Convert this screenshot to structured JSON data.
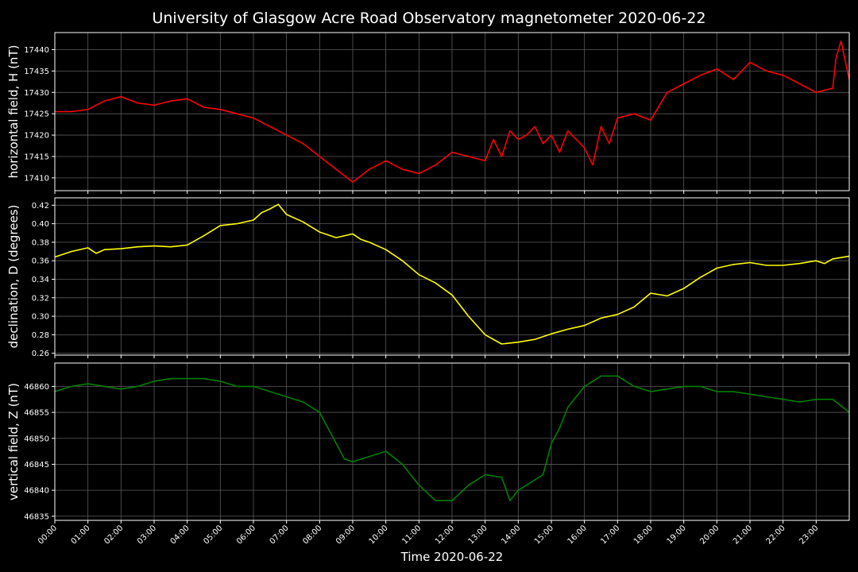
{
  "figure": {
    "title": "University of Glasgow Acre Road Observatory magnetometer 2020-06-22",
    "xlabel": "Time 2020-06-22",
    "background": "#000000"
  },
  "chart_data": [
    {
      "type": "line",
      "ylabel": "horizontal field, H (nT)",
      "color": "#ff0000",
      "ylim": [
        17407,
        17444
      ],
      "yticks": [
        17410,
        17415,
        17420,
        17425,
        17430,
        17435,
        17440
      ],
      "xlim": [
        0,
        24
      ],
      "xticks": [
        "00:00",
        "01:00",
        "02:00",
        "03:00",
        "04:00",
        "05:00",
        "06:00",
        "07:00",
        "08:00",
        "09:00",
        "10:00",
        "11:00",
        "12:00",
        "13:00",
        "14:00",
        "15:00",
        "16:00",
        "17:00",
        "18:00",
        "19:00",
        "20:00",
        "21:00",
        "22:00",
        "23:00"
      ],
      "grid": true,
      "series": [
        {
          "x": [
            0,
            0.5,
            1,
            1.5,
            2,
            2.5,
            3,
            3.5,
            4,
            4.5,
            5,
            5.5,
            6,
            6.5,
            7,
            7.5,
            8,
            8.5,
            9,
            9.5,
            10,
            10.5,
            11,
            11.5,
            12,
            12.5,
            13,
            13.25,
            13.5,
            13.75,
            14,
            14.25,
            14.5,
            14.75,
            15,
            15.25,
            15.5,
            15.75,
            16,
            16.25,
            16.5,
            16.75,
            17,
            17.5,
            18,
            18.5,
            19,
            19.5,
            20,
            20.5,
            21,
            21.5,
            22,
            22.5,
            23,
            23.5,
            23.6,
            23.75,
            24
          ],
          "y": [
            17425.5,
            17425.5,
            17426,
            17428,
            17429,
            17427.5,
            17427,
            17428,
            17428.5,
            17426.5,
            17426,
            17425,
            17424,
            17422,
            17420,
            17418,
            17415,
            17412,
            17409,
            17412,
            17414,
            17412,
            17411,
            17413,
            17416,
            17415,
            17414,
            17419,
            17415,
            17421,
            17419,
            17420,
            17422,
            17418,
            17420,
            17416,
            17421,
            17419,
            17417,
            17413,
            17422,
            17418,
            17424,
            17425,
            17423.5,
            17430,
            17432,
            17434,
            17435.5,
            17433,
            17437,
            17435,
            17434,
            17432,
            17430,
            17431,
            17438,
            17442,
            17433
          ]
        }
      ]
    },
    {
      "type": "line",
      "ylabel": "declination, D (degrees)",
      "color": "#ffff00",
      "ylim": [
        0.258,
        0.428
      ],
      "yticks": [
        0.26,
        0.28,
        0.3,
        0.32,
        0.34,
        0.36,
        0.38,
        0.4,
        0.42
      ],
      "xlim": [
        0,
        24
      ],
      "grid": true,
      "series": [
        {
          "x": [
            0,
            0.5,
            1,
            1.25,
            1.5,
            2,
            2.5,
            3,
            3.5,
            4,
            4.5,
            5,
            5.5,
            6,
            6.25,
            6.5,
            6.75,
            7,
            7.5,
            8,
            8.5,
            9,
            9.25,
            9.5,
            10,
            10.5,
            11,
            11.5,
            12,
            12.5,
            13,
            13.5,
            14,
            14.5,
            15,
            15.5,
            16,
            16.5,
            17,
            17.5,
            18,
            18.5,
            19,
            19.5,
            20,
            20.5,
            21,
            21.5,
            22,
            22.5,
            23,
            23.25,
            23.5,
            24
          ],
          "y": [
            0.364,
            0.37,
            0.374,
            0.368,
            0.372,
            0.373,
            0.375,
            0.376,
            0.375,
            0.377,
            0.387,
            0.398,
            0.4,
            0.404,
            0.412,
            0.416,
            0.421,
            0.41,
            0.402,
            0.391,
            0.385,
            0.389,
            0.383,
            0.38,
            0.372,
            0.36,
            0.345,
            0.336,
            0.323,
            0.3,
            0.28,
            0.27,
            0.272,
            0.275,
            0.281,
            0.286,
            0.29,
            0.298,
            0.302,
            0.31,
            0.325,
            0.322,
            0.33,
            0.342,
            0.352,
            0.356,
            0.358,
            0.355,
            0.355,
            0.357,
            0.36,
            0.357,
            0.362,
            0.365
          ]
        }
      ]
    },
    {
      "type": "line",
      "ylabel": "vertical field, Z (nT)",
      "color": "#008000",
      "ylim": [
        46834.2,
        46864.5
      ],
      "yticks": [
        46835,
        46840,
        46845,
        46850,
        46855,
        46860
      ],
      "xlim": [
        0,
        24
      ],
      "grid": true,
      "series": [
        {
          "x": [
            0,
            0.5,
            1,
            1.5,
            2,
            2.5,
            3,
            3.5,
            4,
            4.5,
            5,
            5.5,
            6,
            6.5,
            7,
            7.5,
            8,
            8.25,
            8.5,
            8.75,
            9,
            9.5,
            10,
            10.5,
            11,
            11.5,
            12,
            12.5,
            13,
            13.5,
            13.75,
            14,
            14.25,
            14.5,
            14.75,
            15,
            15.25,
            15.5,
            16,
            16.5,
            17,
            17.5,
            18,
            18.5,
            19,
            19.5,
            20,
            20.5,
            21,
            21.5,
            22,
            22.5,
            23,
            23.5,
            24
          ],
          "y": [
            46859,
            46860,
            46860.5,
            46860,
            46859.5,
            46860,
            46861,
            46861.5,
            46861.5,
            46861.5,
            46861,
            46860,
            46860,
            46859,
            46858,
            46857,
            46855,
            46852,
            46849,
            46846,
            46845.5,
            46846.5,
            46847.5,
            46845,
            46841,
            46838,
            46838,
            46841,
            46843,
            46842.5,
            46838,
            46840,
            46841,
            46842,
            46843,
            46849,
            46852,
            46856,
            46860,
            46862,
            46862,
            46860,
            46859,
            46859.5,
            46860,
            46860,
            46859,
            46859,
            46858.5,
            46858,
            46857.5,
            46857,
            46857.5,
            46857.5,
            46855
          ]
        }
      ]
    }
  ]
}
